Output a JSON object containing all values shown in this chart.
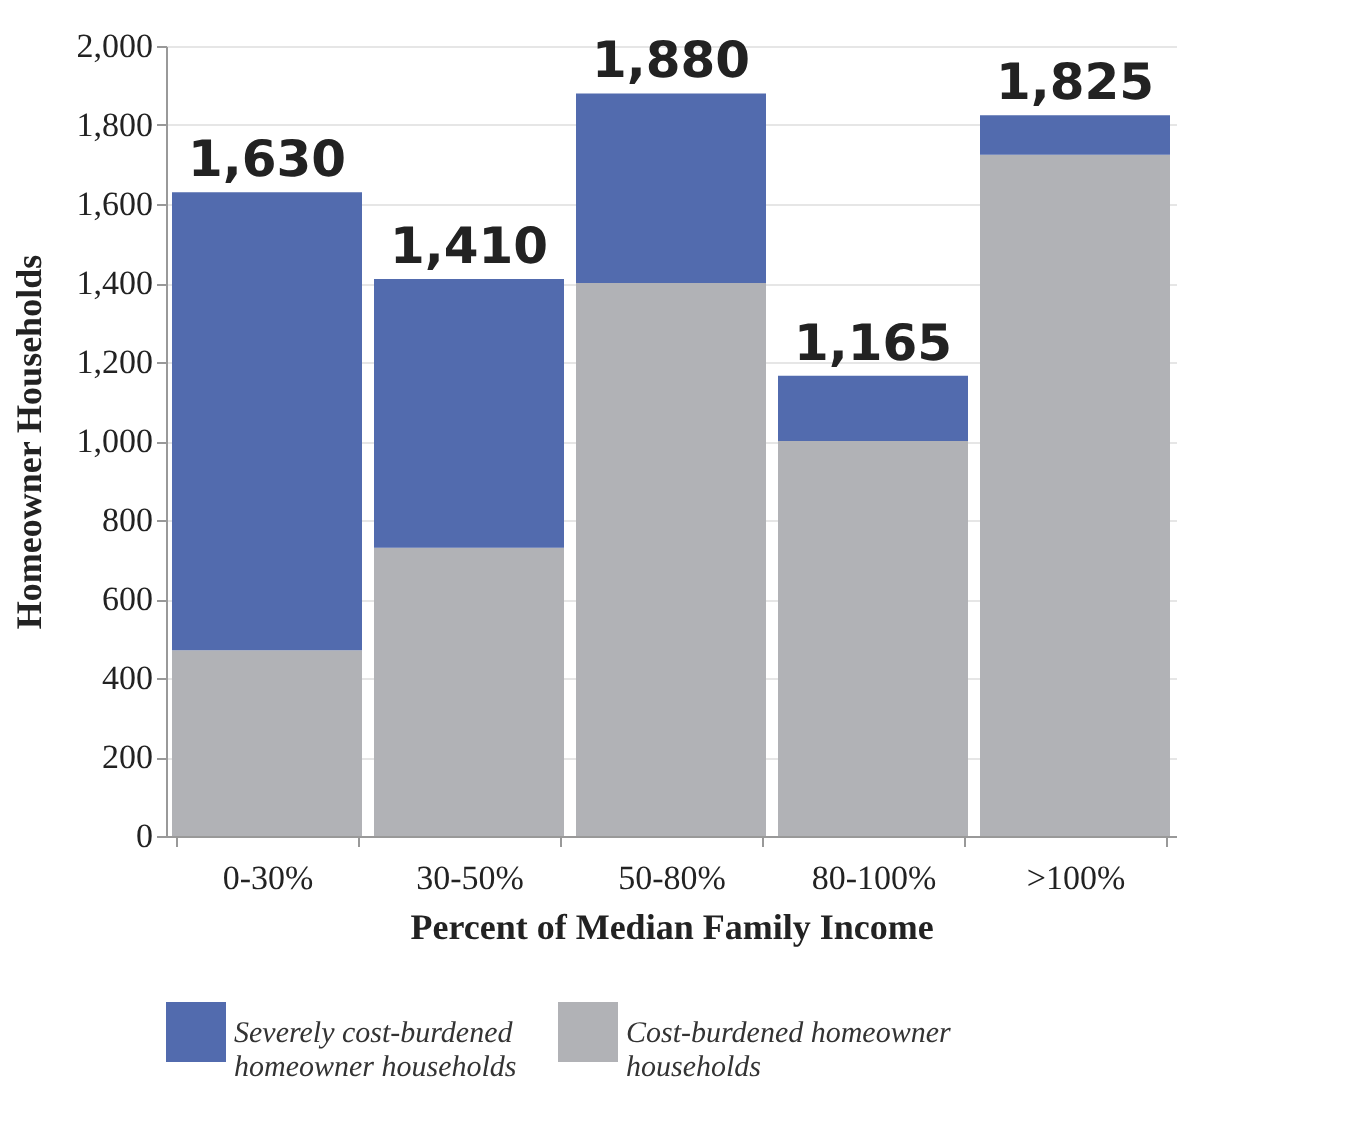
{
  "chart_data": {
    "type": "bar",
    "stacked": true,
    "xlabel": "Percent of Median Family Income",
    "ylabel": "Homeowner Households",
    "categories": [
      "0-30%",
      "30-50%",
      "50-80%",
      "80-100%",
      ">100%"
    ],
    "series": [
      {
        "name": "Cost-burdened homeowner households",
        "color": "#b1b2b6",
        "values": [
          470,
          730,
          1400,
          1000,
          1725
        ]
      },
      {
        "name": "Severely cost-burdened homeowner households",
        "color": "#526bae",
        "values": [
          1160,
          680,
          480,
          165,
          100
        ]
      }
    ],
    "totals": [
      "1,630",
      "1,410",
      "1,880",
      "1,165",
      "1,825"
    ],
    "ylim": [
      0,
      2000
    ],
    "yticks": [
      0,
      200,
      400,
      600,
      800,
      {
        "value": 1000,
        "label": "1,000"
      },
      {
        "value": 1200,
        "label": "1,200"
      },
      {
        "value": 1400,
        "label": "1,400"
      },
      {
        "value": 1600,
        "label": "1,600"
      },
      {
        "value": 1800,
        "label": "1,800"
      },
      {
        "value": 2000,
        "label": "2,000"
      }
    ],
    "grid": "y",
    "legend": "bottom"
  }
}
